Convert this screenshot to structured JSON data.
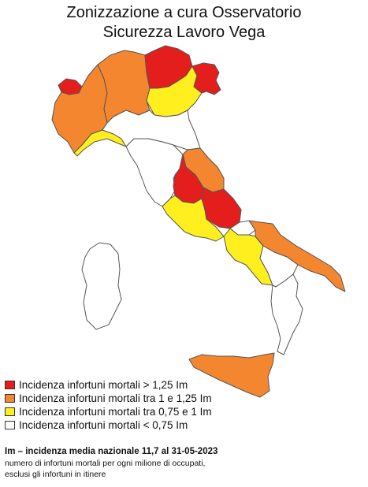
{
  "title_line1": "Zonizzazione a cura Osservatorio",
  "title_line2": "Sicurezza Lavoro Vega",
  "colors": {
    "red": "#e41d1d",
    "orange": "#f3862f",
    "yellow": "#ffef1e",
    "white": "#ffffff"
  },
  "legend": [
    {
      "label": "Incidenza infortuni mortali > 1,25 Im",
      "color": "#e41d1d"
    },
    {
      "label": "Incidenza infortuni mortali tra 1 e 1,25 Im",
      "color": "#f3862f"
    },
    {
      "label": "Incidenza infortuni mortali tra 0,75 e 1 Im",
      "color": "#ffef1e"
    },
    {
      "label": "Incidenza infortuni mortali < 0,75 Im",
      "color": "#ffffff"
    }
  ],
  "note_title": "Im – incidenza media nazionale 11,7 al 31-05-2023",
  "note_line1": "numero di infortuni mortali per ogni milione di occupati,",
  "note_line2": "esclusi gli infortuni in itinere"
}
